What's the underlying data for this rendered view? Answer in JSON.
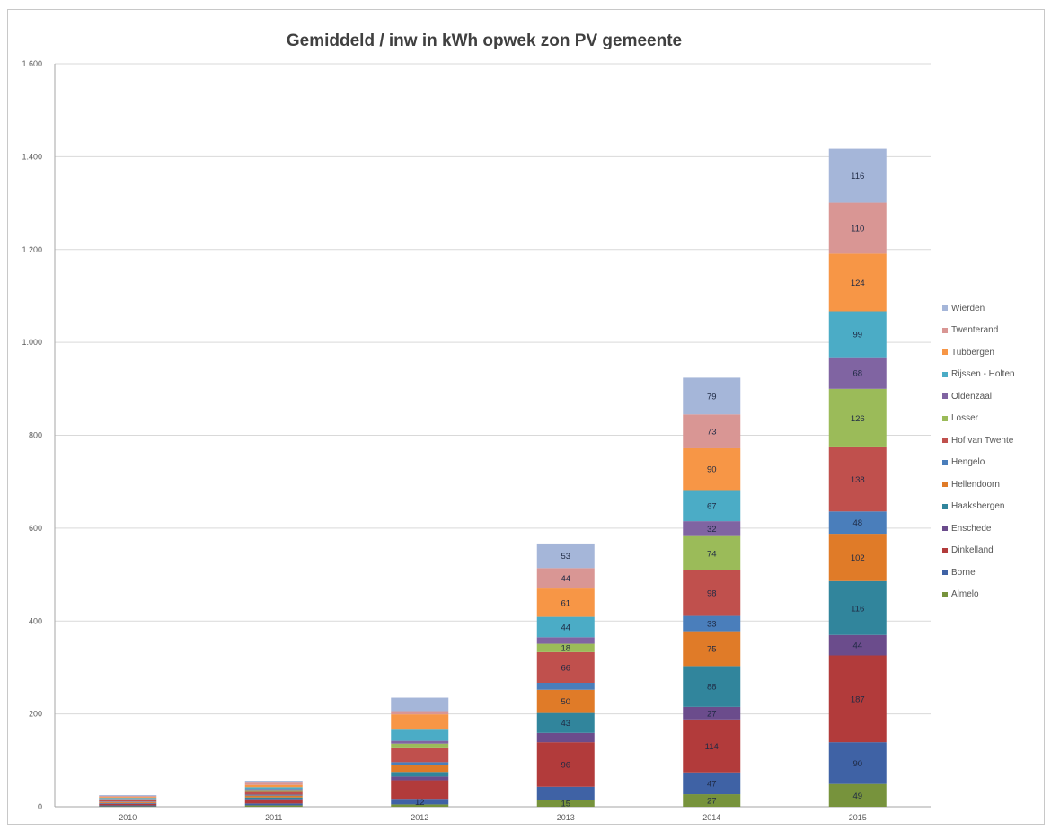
{
  "chart_data": {
    "type": "bar",
    "stacked": true,
    "title": "Gemiddeld / inw in kWh opwek zon PV gemeente",
    "xlabel": "",
    "ylabel": "",
    "ylim": [
      0,
      1600
    ],
    "yticks": [
      0,
      200,
      400,
      600,
      800,
      1000,
      1200,
      1400,
      1600
    ],
    "ytick_labels": [
      "0",
      "200",
      "400",
      "600",
      "800",
      "1.000",
      "1.200",
      "1.400",
      "1.600"
    ],
    "grid": true,
    "legend": "right",
    "categories": [
      "2010",
      "2011",
      "2012",
      "2013",
      "2014",
      "2015"
    ],
    "series": [
      {
        "name": "Almelo",
        "color": "#77933c",
        "values": [
          1,
          3,
          5,
          15,
          27,
          49
        ]
      },
      {
        "name": "Borne",
        "color": "#3f62a5",
        "values": [
          2,
          4,
          12,
          28,
          47,
          90
        ]
      },
      {
        "name": "Dinkelland",
        "color": "#b23b3b",
        "values": [
          3,
          7,
          40,
          96,
          114,
          187
        ]
      },
      {
        "name": "Enschede",
        "color": "#6b4c8c",
        "values": [
          1,
          3,
          8,
          20,
          27,
          44
        ]
      },
      {
        "name": "Haaksbergen",
        "color": "#31859c",
        "values": [
          1,
          3,
          10,
          43,
          88,
          116
        ]
      },
      {
        "name": "Hellendoorn",
        "color": "#e07b28",
        "values": [
          2,
          4,
          15,
          50,
          75,
          102
        ]
      },
      {
        "name": "Hengelo",
        "color": "#4a7ebb",
        "values": [
          1,
          2,
          6,
          15,
          33,
          48
        ]
      },
      {
        "name": "Hof van Twente",
        "color": "#c0504d",
        "values": [
          3,
          6,
          30,
          66,
          98,
          138
        ]
      },
      {
        "name": "Losser",
        "color": "#9bbb59",
        "values": [
          2,
          4,
          10,
          18,
          74,
          126
        ]
      },
      {
        "name": "Oldenzaal",
        "color": "#8064a2",
        "values": [
          1,
          2,
          6,
          14,
          32,
          68
        ]
      },
      {
        "name": "Rijssen - Holten",
        "color": "#4bacc6",
        "values": [
          2,
          4,
          24,
          44,
          67,
          99
        ]
      },
      {
        "name": "Tubbergen",
        "color": "#f79646",
        "values": [
          2,
          5,
          33,
          61,
          90,
          124
        ]
      },
      {
        "name": "Twenterand",
        "color": "#d99694",
        "values": [
          2,
          5,
          7,
          44,
          73,
          110
        ]
      },
      {
        "name": "Wierden",
        "color": "#a5b6d9",
        "values": [
          2,
          4,
          29,
          53,
          79,
          116
        ]
      }
    ],
    "data_labels": [
      [
        "",
        "",
        "",
        "",
        "",
        "",
        "",
        "",
        "",
        "",
        "",
        "",
        "",
        ""
      ],
      [
        "",
        "",
        "",
        "",
        "",
        "",
        "",
        "",
        "",
        "",
        "",
        "",
        "",
        ""
      ],
      [
        "",
        "12",
        "",
        "",
        "",
        "",
        "",
        "",
        "",
        "",
        "",
        "",
        "",
        ""
      ],
      [
        "15",
        "",
        "96",
        "",
        "43",
        "50",
        "",
        "66",
        "18",
        "",
        "44",
        "61",
        "44",
        "53"
      ],
      [
        "27",
        "47",
        "114",
        "27",
        "88",
        "75",
        "33",
        "98",
        "74",
        "32",
        "67",
        "90",
        "73",
        "79"
      ],
      [
        "49",
        "90",
        "187",
        "44",
        "116",
        "102",
        "48",
        "138",
        "126",
        "68",
        "99",
        "124",
        "110",
        "116"
      ]
    ]
  }
}
